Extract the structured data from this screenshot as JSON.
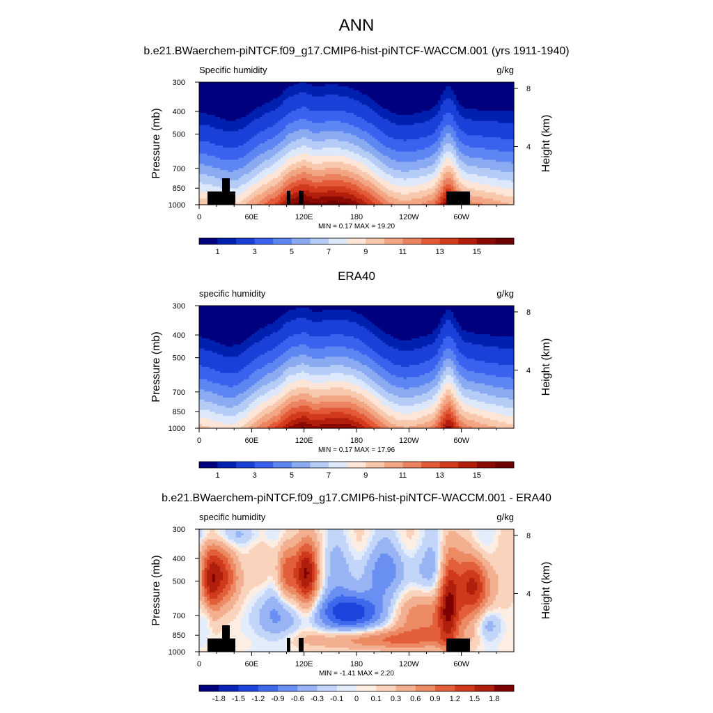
{
  "page_title": "ANN",
  "colors": {
    "seq_palette": [
      "#00007f",
      "#0020b0",
      "#1a40d8",
      "#3a62ee",
      "#5e86f2",
      "#8aaaf2",
      "#b5ccf6",
      "#dde8fa",
      "#fde6d8",
      "#f8c8ac",
      "#f2a684",
      "#ec8360",
      "#e35a38",
      "#d23a1c",
      "#b21e0c",
      "#8a0a02",
      "#6e0000"
    ],
    "diff_palette": [
      "#00007f",
      "#0a24b8",
      "#1d45dc",
      "#3f68ec",
      "#6a8ff2",
      "#98b4f4",
      "#c3d5f8",
      "#e3ecfb",
      "#fdeee4",
      "#f9d3bc",
      "#f3b090",
      "#ec8a64",
      "#e25f3a",
      "#cf3a1c",
      "#b01e0c",
      "#7f0000"
    ],
    "terrain": "#000000"
  },
  "chart_data": [
    {
      "type": "heatmap",
      "title": "b.e21.BWaerchem-piNTCF.f09_g17.CMIP6-hist-piNTCF-WACCM.001 (yrs 1911-1940)",
      "left_label": "Specific humidity",
      "units": "g/kg",
      "ylabel": "Pressure (mb)",
      "y2label": "Height (km)",
      "x_ticks": [
        "0",
        "60E",
        "120E",
        "180",
        "120W",
        "60W"
      ],
      "x_tick_lons": [
        0,
        60,
        120,
        180,
        240,
        300
      ],
      "xlim": [
        0,
        360
      ],
      "y_ticks": [
        "300",
        "400",
        "500",
        "700",
        "850",
        "1000"
      ],
      "y_tick_values": [
        300,
        400,
        500,
        700,
        850,
        1000
      ],
      "ylim": [
        300,
        1000
      ],
      "y_scale": "log",
      "y2_ticks": [
        "8",
        "4"
      ],
      "y2_tick_values": [
        8,
        4
      ],
      "stats": "MIN =   0.17  MAX =   19.20",
      "min": 0.17,
      "max": 19.2,
      "field": "model",
      "terrain_mask": true,
      "colorbar_ticks": [
        "1",
        "3",
        "5",
        "7",
        "9",
        "11",
        "13",
        "15"
      ],
      "colorbar_levels": [
        0.5,
        1,
        2,
        3,
        4,
        5,
        6,
        7,
        8,
        9,
        10,
        11,
        12,
        13,
        14,
        15
      ]
    },
    {
      "type": "heatmap",
      "title": "ERA40",
      "left_label": "specific humidity",
      "units": "g/kg",
      "ylabel": "Pressure (mb)",
      "y2label": "Height (km)",
      "x_ticks": [
        "0",
        "60E",
        "120E",
        "180",
        "120W",
        "60W"
      ],
      "x_tick_lons": [
        0,
        60,
        120,
        180,
        240,
        300
      ],
      "xlim": [
        0,
        360
      ],
      "y_ticks": [
        "300",
        "400",
        "500",
        "700",
        "850",
        "1000"
      ],
      "y_tick_values": [
        300,
        400,
        500,
        700,
        850,
        1000
      ],
      "ylim": [
        300,
        1000
      ],
      "y_scale": "log",
      "y2_ticks": [
        "8",
        "4"
      ],
      "y2_tick_values": [
        8,
        4
      ],
      "stats": "MIN =   0.17  MAX =   17.96",
      "min": 0.17,
      "max": 17.96,
      "field": "obs",
      "terrain_mask": false,
      "colorbar_ticks": [
        "1",
        "3",
        "5",
        "7",
        "9",
        "11",
        "13",
        "15"
      ],
      "colorbar_levels": [
        0.5,
        1,
        2,
        3,
        4,
        5,
        6,
        7,
        8,
        9,
        10,
        11,
        12,
        13,
        14,
        15
      ]
    },
    {
      "type": "heatmap",
      "title": "b.e21.BWaerchem-piNTCF.f09_g17.CMIP6-hist-piNTCF-WACCM.001 - ERA40",
      "left_label": "specific humidity",
      "units": "g/kg",
      "ylabel": "Pressure (mb)",
      "y2label": "Height (km)",
      "x_ticks": [
        "0",
        "60E",
        "120E",
        "180",
        "120W",
        "60W"
      ],
      "x_tick_lons": [
        0,
        60,
        120,
        180,
        240,
        300
      ],
      "xlim": [
        0,
        360
      ],
      "y_ticks": [
        "300",
        "400",
        "500",
        "700",
        "850",
        "1000"
      ],
      "y_tick_values": [
        300,
        400,
        500,
        700,
        850,
        1000
      ],
      "ylim": [
        300,
        1000
      ],
      "y_scale": "log",
      "y2_ticks": [
        "8",
        "4"
      ],
      "y2_tick_values": [
        8,
        4
      ],
      "stats": "MIN =  -1.41  MAX =   2.20",
      "min": -1.41,
      "max": 2.2,
      "field": "diff",
      "terrain_mask": true,
      "colorbar_ticks": [
        "-1.8",
        "-1.5",
        "-1.2",
        "-0.9",
        "-0.6",
        "-0.3",
        "-0.1",
        "0",
        "0.1",
        "0.3",
        "0.6",
        "0.9",
        "1.2",
        "1.5",
        "1.8"
      ],
      "colorbar_levels": [
        -1.8,
        -1.5,
        -1.2,
        -0.9,
        -0.6,
        -0.3,
        -0.1,
        0,
        0.1,
        0.3,
        0.6,
        0.9,
        1.2,
        1.5,
        1.8
      ]
    }
  ]
}
